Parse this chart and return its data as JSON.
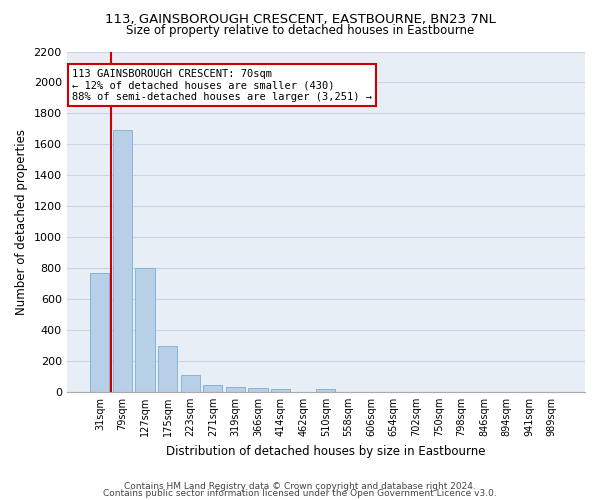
{
  "title1": "113, GAINSBOROUGH CRESCENT, EASTBOURNE, BN23 7NL",
  "title2": "Size of property relative to detached houses in Eastbourne",
  "xlabel": "Distribution of detached houses by size in Eastbourne",
  "ylabel": "Number of detached properties",
  "categories": [
    "31sqm",
    "79sqm",
    "127sqm",
    "175sqm",
    "223sqm",
    "271sqm",
    "319sqm",
    "366sqm",
    "414sqm",
    "462sqm",
    "510sqm",
    "558sqm",
    "606sqm",
    "654sqm",
    "702sqm",
    "750sqm",
    "798sqm",
    "846sqm",
    "894sqm",
    "941sqm",
    "989sqm"
  ],
  "values": [
    770,
    1690,
    800,
    300,
    110,
    45,
    32,
    25,
    20,
    0,
    20,
    0,
    0,
    0,
    0,
    0,
    0,
    0,
    0,
    0,
    0
  ],
  "bar_color": "#b8cfe8",
  "bar_edge_color": "#7aafd4",
  "annotation_text_line1": "113 GAINSBOROUGH CRESCENT: 70sqm",
  "annotation_text_line2": "← 12% of detached houses are smaller (430)",
  "annotation_text_line3": "88% of semi-detached houses are larger (3,251) →",
  "annotation_box_color": "#ffffff",
  "annotation_box_edge": "#cc0000",
  "marker_line_color": "#cc0000",
  "ylim": [
    0,
    2200
  ],
  "yticks": [
    0,
    200,
    400,
    600,
    800,
    1000,
    1200,
    1400,
    1600,
    1800,
    2000,
    2200
  ],
  "grid_color": "#c8d4e8",
  "bg_color": "#e8eef6",
  "footer1": "Contains HM Land Registry data © Crown copyright and database right 2024.",
  "footer2": "Contains public sector information licensed under the Open Government Licence v3.0."
}
